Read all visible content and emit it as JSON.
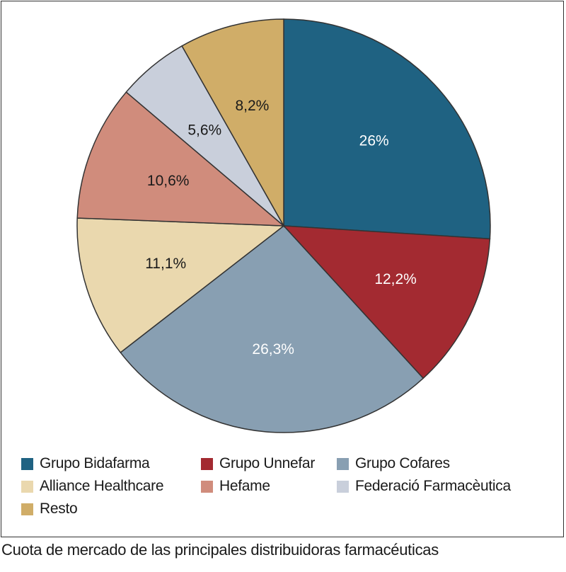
{
  "chart_data": {
    "type": "pie",
    "title": "",
    "categories": [
      "Grupo Bidafarma",
      "Grupo Unnefar",
      "Grupo Cofares",
      "Alliance Healthcare",
      "Hefame",
      "Federació Farmacèutica",
      "Resto"
    ],
    "values": [
      26,
      12.2,
      26.3,
      11.1,
      10.6,
      5.6,
      8.2
    ],
    "value_labels": [
      "26%",
      "12,2%",
      "26,3%",
      "11,1%",
      "10,6%",
      "5,6%",
      "8,2%"
    ],
    "colors": [
      "#1f6282",
      "#a32a31",
      "#889fb2",
      "#ead8ae",
      "#d08c7c",
      "#c9cfdb",
      "#d0ad68"
    ],
    "label_colors": [
      "#ffffff",
      "#ffffff",
      "#ffffff",
      "#1a1a1a",
      "#1a1a1a",
      "#1a1a1a",
      "#1a1a1a"
    ],
    "start": "12 o'clock",
    "direction": "clockwise",
    "legend_placement": "bottom"
  },
  "caption": "Cuota de mercado de las principales distribuidoras farmacéuticas"
}
